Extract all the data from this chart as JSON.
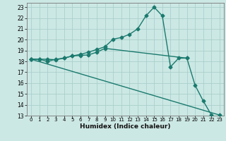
{
  "xlabel": "Humidex (Indice chaleur)",
  "bg_color": "#cce8e4",
  "grid_color": "#aad0cc",
  "line_color": "#1a7a6e",
  "xlim": [
    -0.5,
    23.5
  ],
  "ylim": [
    13,
    23.4
  ],
  "xticks": [
    0,
    1,
    2,
    3,
    4,
    5,
    6,
    7,
    8,
    9,
    10,
    11,
    12,
    13,
    14,
    15,
    16,
    17,
    18,
    19,
    20,
    21,
    22,
    23
  ],
  "yticks": [
    13,
    14,
    15,
    16,
    17,
    18,
    19,
    20,
    21,
    22,
    23
  ],
  "line1_x": [
    0,
    1,
    2,
    3,
    4,
    5,
    6,
    7,
    8,
    9,
    10,
    11,
    12,
    13,
    14,
    15,
    16,
    17,
    18,
    19,
    20,
    21,
    22,
    23
  ],
  "line1_y": [
    18.2,
    18.2,
    18.2,
    18.15,
    18.3,
    18.5,
    18.65,
    18.85,
    19.1,
    19.35,
    20.05,
    20.2,
    20.5,
    21.0,
    22.2,
    23.0,
    22.2,
    17.5,
    18.3,
    18.3,
    15.8,
    14.35,
    13.05,
    null
  ],
  "line2_x": [
    0,
    1,
    2,
    3,
    4,
    5,
    6,
    7,
    8,
    9,
    19
  ],
  "line2_y": [
    18.2,
    18.2,
    18.0,
    18.2,
    18.3,
    18.5,
    18.55,
    18.6,
    18.85,
    19.2,
    18.3
  ],
  "line3_x": [
    0,
    23
  ],
  "line3_y": [
    18.2,
    13.05
  ],
  "markersize": 2.5,
  "linewidth": 1.0
}
